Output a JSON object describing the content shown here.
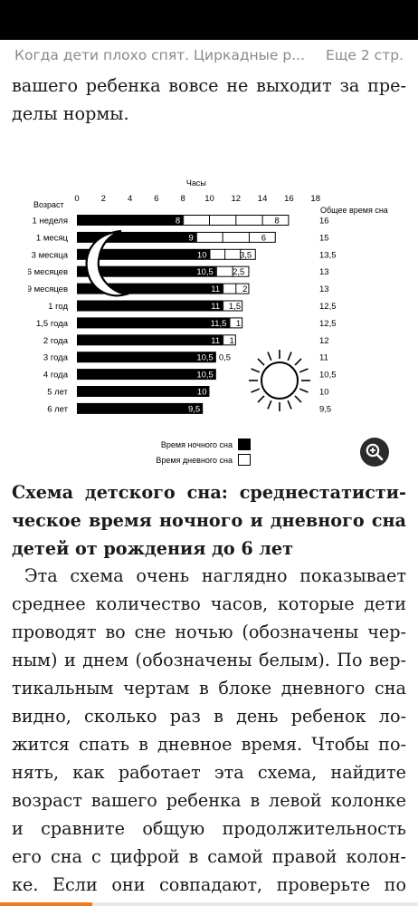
{
  "header": {
    "title": "Когда дети плохо спят. Циркадные р...",
    "pages_left": "Еще 2 стр."
  },
  "text": {
    "top_lines": [
      "вашего ребенка вовсе не выходит за пре-",
      "делы нормы."
    ],
    "caption_lines": [
      "Схема детского сна: среднестатисти-",
      "ческое время ночного и дневного сна у",
      "детей от рождения до 6 лет"
    ],
    "body_lines": [
      "Эта схема очень наглядно показывает",
      "среднее количество часов, которые дети",
      "проводят во сне ночью (обозначены чер-",
      "ным) и днем (обозначены белым). По вер-",
      "тикальным чертам в блоке дневного сна",
      "видно, сколько раз в день ребенок ло-",
      "жится спать в дневное время. Чтобы по-",
      "нять, как работает эта схема, найдите",
      "возраст вашего ребенка в левой колонке",
      "и сравните общую продолжительность",
      "его сна с цифрой в самой правой колон-",
      "ке. Если они совпадают, проверьте по"
    ]
  },
  "chart_data": {
    "type": "bar",
    "stacked": true,
    "orientation": "horizontal",
    "title": "Часы",
    "ylabel": "Возраст",
    "total_label": "Общее время сна",
    "xlim": [
      0,
      18
    ],
    "xticks": [
      0,
      2,
      4,
      6,
      8,
      10,
      12,
      14,
      16,
      18
    ],
    "categories": [
      "1 неделя",
      "1 месяц",
      "3 месяца",
      "6 месяцев",
      "9 месяцев",
      "1 год",
      "1,5 года",
      "2 года",
      "3 года",
      "4 года",
      "5 лет",
      "6 лет"
    ],
    "series": [
      {
        "name": "Время ночного сна",
        "color": "#000000",
        "values": [
          8,
          9,
          10,
          10.5,
          11,
          11,
          11.5,
          11,
          10.5,
          10.5,
          10,
          9.5
        ],
        "labels": [
          "8",
          "9",
          "10",
          "10,5",
          "11",
          "11",
          "11,5",
          "11",
          "10,5",
          "10,5",
          "10",
          "9,5"
        ]
      },
      {
        "name": "Время дневного сна",
        "color": "#ffffff",
        "values": [
          8,
          6,
          3.5,
          2.5,
          2,
          1.5,
          1,
          1,
          0.5,
          0,
          0,
          0
        ],
        "labels": [
          "8",
          "6",
          "3,5",
          "2,5",
          "2",
          "1,5",
          "1",
          "1",
          "0,5",
          "",
          "",
          ""
        ],
        "naps": [
          4,
          3,
          3,
          2,
          2,
          1,
          1,
          1,
          1,
          0,
          0,
          0
        ]
      }
    ],
    "totals": [
      "16",
      "15",
      "13,5",
      "13",
      "13",
      "12,5",
      "12,5",
      "12",
      "11",
      "10,5",
      "10",
      "9,5"
    ],
    "decorations": [
      "moon-icon",
      "sun-icon"
    ],
    "legend": "bottom-center",
    "grid": false
  },
  "reading_progress": 0.22,
  "colors": {
    "accent": "#f07a20",
    "zoom": "#2b2b2b"
  }
}
